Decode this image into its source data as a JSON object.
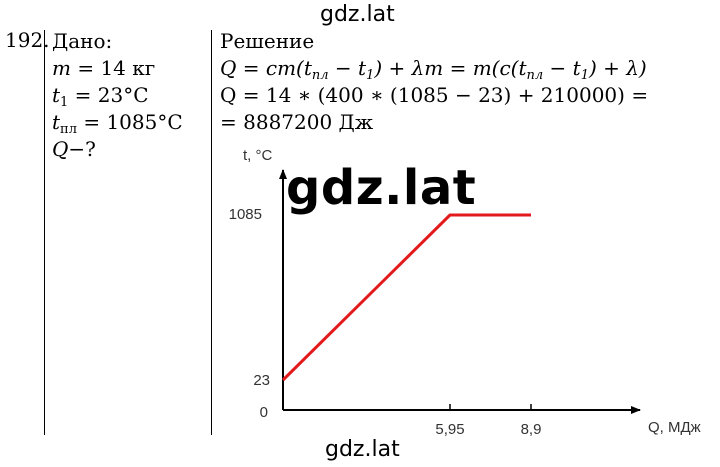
{
  "watermarks": {
    "top": "gdz.lat",
    "center": "gdz.lat",
    "bottom": "gdz.lat"
  },
  "problem_number": "192.",
  "given": {
    "title": "Дано:",
    "line1": {
      "var": "m",
      "rest": " = 14 кг"
    },
    "line2": {
      "var": "t",
      "sub": "1",
      "rest": " = 23°C"
    },
    "line3": {
      "var": "t",
      "sub": "пл",
      "rest": " = 1085°C"
    },
    "line4": {
      "var": "Q",
      "rest": "−?"
    }
  },
  "solution": {
    "title": "Решение",
    "formula_a": "Q = cm(t",
    "formula_sub1": "пл",
    "formula_b": " − t",
    "formula_sub2": "1",
    "formula_c": ") + λm = m(c(t",
    "formula_sub3": "пл",
    "formula_d": " − t",
    "formula_sub4": "1",
    "formula_e": ") + λ)",
    "calc_line": "Q = 14 ∗ (400 ∗ (1085 − 23) + 210000) =",
    "result_line": "= 8887200 Дж"
  },
  "chart_data": {
    "type": "line",
    "ylabel": "t, °C",
    "xlabel": "Q, МДж",
    "x_ticks": [
      "5,95",
      "8,9"
    ],
    "y_ticks": [
      "1085",
      "23",
      "0"
    ],
    "series": [
      {
        "x": [
          0,
          5.95,
          8.9
        ],
        "y": [
          23,
          1085,
          1085
        ]
      }
    ],
    "series_color": "#e31a1c",
    "grid": false
  }
}
